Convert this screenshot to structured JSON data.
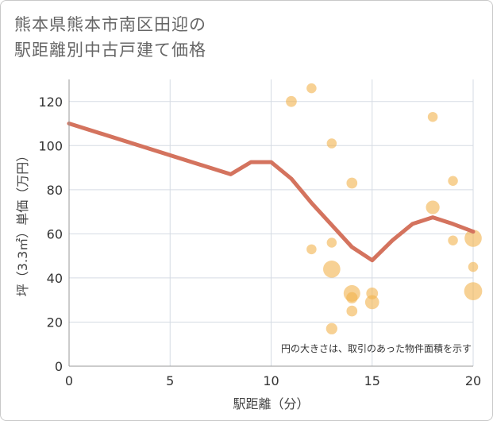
{
  "chart_data": {
    "type": "scatter",
    "title_lines": [
      "熊本県熊本市南区田迎の",
      "駅距離別中古戸建て価格"
    ],
    "xlabel": "駅距離（分）",
    "ylabel": "坪（3.3㎡）単価（万円）",
    "xlim": [
      0,
      20
    ],
    "ylim": [
      0,
      130
    ],
    "x_ticks": [
      0,
      5,
      10,
      15,
      20
    ],
    "y_ticks": [
      0,
      20,
      40,
      60,
      80,
      100,
      120
    ],
    "grid": true,
    "note": "円の大きさは、取引のあった物件面積を示す",
    "colors": {
      "line": "#d4735e",
      "bubble": "#f2b24c",
      "grid": "#d5dbe3",
      "axis": "#999999"
    },
    "trend_line": {
      "x": [
        0,
        8,
        9,
        10,
        11,
        12,
        13,
        14,
        15,
        16,
        17,
        18,
        19,
        20
      ],
      "y": [
        110,
        87,
        92.5,
        92.5,
        85,
        74,
        64,
        54,
        48,
        57,
        64.5,
        67.5,
        64.5,
        61
      ]
    },
    "bubbles": [
      {
        "x": 11,
        "y": 120,
        "size": 1.2
      },
      {
        "x": 12,
        "y": 126,
        "size": 1
      },
      {
        "x": 12,
        "y": 53,
        "size": 1
      },
      {
        "x": 13,
        "y": 101,
        "size": 1
      },
      {
        "x": 13,
        "y": 56,
        "size": 1
      },
      {
        "x": 13,
        "y": 44,
        "size": 3
      },
      {
        "x": 13,
        "y": 17,
        "size": 1.3
      },
      {
        "x": 14,
        "y": 83,
        "size": 1.2
      },
      {
        "x": 14,
        "y": 33,
        "size": 2.8
      },
      {
        "x": 14,
        "y": 31,
        "size": 1.3
      },
      {
        "x": 14,
        "y": 25,
        "size": 1.2
      },
      {
        "x": 15,
        "y": 33,
        "size": 1.4
      },
      {
        "x": 15,
        "y": 29,
        "size": 2
      },
      {
        "x": 18,
        "y": 113,
        "size": 1
      },
      {
        "x": 18,
        "y": 72,
        "size": 1.9
      },
      {
        "x": 19,
        "y": 84,
        "size": 1
      },
      {
        "x": 19,
        "y": 57,
        "size": 1
      },
      {
        "x": 20,
        "y": 58,
        "size": 3
      },
      {
        "x": 20,
        "y": 45,
        "size": 1
      },
      {
        "x": 20,
        "y": 34,
        "size": 3.3
      }
    ]
  }
}
